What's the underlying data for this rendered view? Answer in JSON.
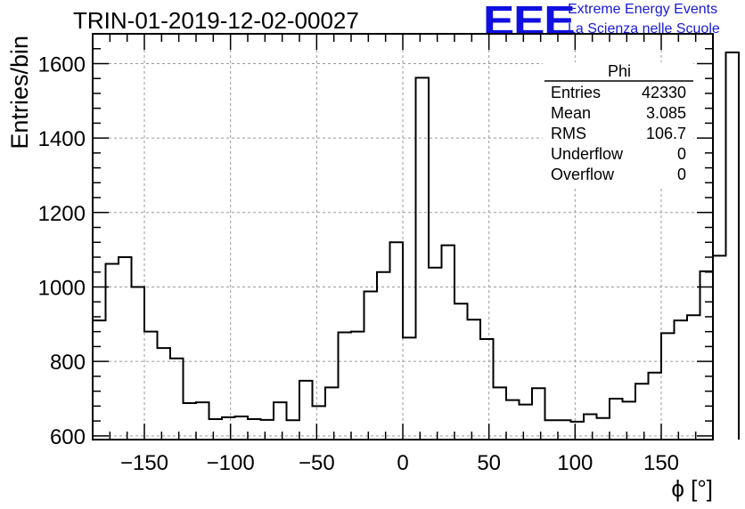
{
  "chart_data": {
    "type": "histogram",
    "title": "TRIN-01-2019-12-02-00027",
    "xlabel": "ϕ [°]",
    "ylabel": "Entries/bin",
    "xlim": [
      -180,
      180
    ],
    "ylim": [
      590,
      1680
    ],
    "xticks": [
      -150,
      -100,
      -50,
      0,
      50,
      100,
      150
    ],
    "yticks": [
      600,
      800,
      1000,
      1200,
      1400,
      1600
    ],
    "grid": true,
    "bin_width": 7.5,
    "bin_start": -180,
    "values": [
      910,
      1062,
      1080,
      1000,
      880,
      836,
      808,
      688,
      690,
      645,
      650,
      652,
      645,
      643,
      690,
      642,
      748,
      680,
      730,
      878,
      880,
      988,
      1040,
      1120,
      864,
      1562,
      1052,
      1112,
      955,
      912,
      860,
      730,
      696,
      684,
      728,
      642,
      642,
      638,
      658,
      648,
      700,
      692,
      740,
      770,
      876,
      910,
      924,
      1042,
      1084,
      1630
    ],
    "stats": {
      "name": "Phi",
      "rows": [
        {
          "label": "Entries",
          "value": "42330"
        },
        {
          "label": "Mean",
          "value": "3.085"
        },
        {
          "label": "RMS",
          "value": "106.7"
        },
        {
          "label": "Underflow",
          "value": "0"
        },
        {
          "label": "Overflow",
          "value": "0"
        }
      ]
    }
  },
  "logo": {
    "mark": "EEE",
    "line1": "Extreme Energy Events",
    "line2": "La Scienza nelle Scuole",
    "color": "#1010e0"
  }
}
